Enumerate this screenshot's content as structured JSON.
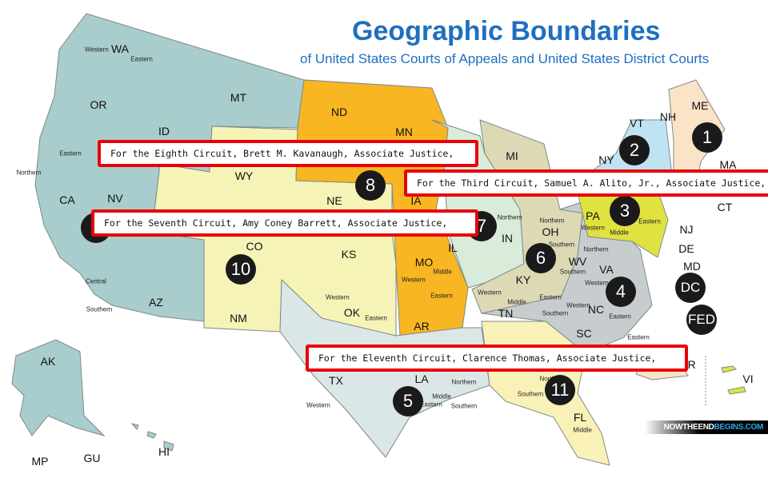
{
  "title": "Geographic Boundaries",
  "subtitle": "of United States Courts of Appeals and United States District Courts",
  "colors": {
    "first": "#fbe3c7",
    "second": "#bfe3f2",
    "third": "#dfe23f",
    "fourth": "#c7cdcf",
    "fifth": "#dbe7e7",
    "sixth": "#ddd9b5",
    "seventh": "#d8ecd9",
    "eighth": "#f8b622",
    "ninth": "#a9cccc",
    "tenth": "#f6f3b7",
    "eleventh": "#f9f1b8",
    "callout_border": "#e8000a",
    "title": "#1f6fbf"
  },
  "states": [
    "WA",
    "OR",
    "MT",
    "ID",
    "ND",
    "MN",
    "WY",
    "NV",
    "CA",
    "CO",
    "KS",
    "NE",
    "IA",
    "IL",
    "IN",
    "OH",
    "MI",
    "PA",
    "NY",
    "ME",
    "NH",
    "VT",
    "MA",
    "CT",
    "NJ",
    "DE",
    "MD",
    "WV",
    "VA",
    "KY",
    "MO",
    "OK",
    "NM",
    "AZ",
    "AR",
    "TN",
    "NC",
    "SC",
    "TX",
    "LA",
    "FL",
    "AK",
    "HI",
    "GU",
    "MP",
    "PR",
    "VI"
  ],
  "districts": [
    "Western",
    "Eastern",
    "Eastern",
    "Northern",
    "Central",
    "Southern",
    "Western",
    "Eastern",
    "Western",
    "Middle",
    "Eastern",
    "Northern",
    "Southern",
    "Western",
    "Eastern",
    "Middle",
    "Western",
    "Northern",
    "Southern",
    "Western",
    "Eastern",
    "Western",
    "Eastern",
    "Southern",
    "Middle",
    "Northern",
    "Southern",
    "Middle",
    "Western",
    "Eastern",
    "Northern",
    "Southern",
    "Eastern",
    "Middle",
    "Northern"
  ],
  "circuits": [
    "1",
    "2",
    "3",
    "4",
    "5",
    "6",
    "7",
    "8",
    "9",
    "10",
    "11",
    "DC",
    "FED"
  ],
  "callouts": [
    "For the Eighth Circuit, Brett M. Kavanaugh, Associate Justice,",
    "For the Third Circuit, Samuel A. Alito, Jr., Associate Justice,",
    "For the Seventh Circuit, Amy Coney Barrett, Associate Justice,",
    "For the Eleventh Circuit, Clarence Thomas, Associate Justice,"
  ],
  "watermark": {
    "part1": "NOWTHEEND",
    "part2": "BEGINS.COM"
  }
}
